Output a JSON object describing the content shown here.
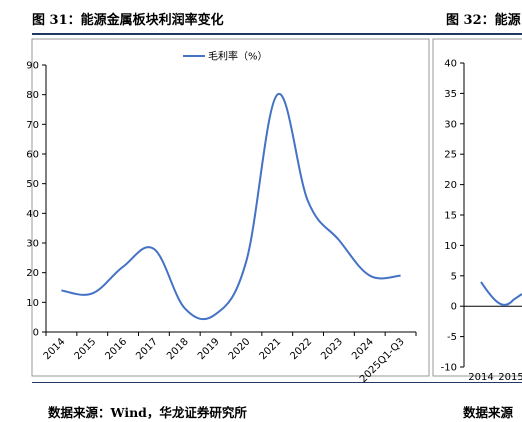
{
  "figures": {
    "left_title": "图 31：能源金属板块利润率变化",
    "right_title": "图 32：能源",
    "left_source": "数据来源：Wind，华龙证券研究所",
    "right_source": "数据来源"
  },
  "colors": {
    "series_line": "#4472c4",
    "rule": "#1f3864",
    "axis": "#000000"
  },
  "chart_data": [
    {
      "type": "line",
      "title": "",
      "xlabel": "",
      "ylabel": "",
      "categories": [
        "2014",
        "2015",
        "2016",
        "2017",
        "2018",
        "2019",
        "2020",
        "2021",
        "2022",
        "2023",
        "2024",
        "2025Q1-Q3"
      ],
      "series": [
        {
          "name": "毛利率（%）",
          "values": [
            14,
            13,
            22,
            28,
            8,
            6,
            24,
            80,
            44,
            31,
            19,
            19
          ]
        }
      ],
      "ylim": [
        0,
        90
      ],
      "yticks": [
        0,
        10,
        20,
        30,
        40,
        50,
        60,
        70,
        80,
        90
      ],
      "legend": "top-center",
      "grid": false
    },
    {
      "type": "line",
      "title": "",
      "xlabel": "",
      "ylabel": "",
      "categories": [
        "2014",
        "2015"
      ],
      "series": [
        {
          "values": [
            4,
            0
          ]
        }
      ],
      "ylim": [
        -10,
        40
      ],
      "yticks": [
        -10,
        -5,
        0,
        5,
        10,
        15,
        20,
        25,
        30,
        35,
        40
      ],
      "grid": false
    }
  ]
}
